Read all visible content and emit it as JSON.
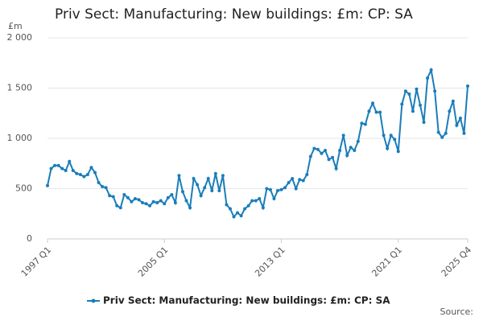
{
  "chart_data": {
    "type": "line",
    "title": "Priv Sect: Manufacturing: New buildings: £m: CP: SA",
    "y_unit": "£m",
    "source": "Source:",
    "categories": [
      "1997 Q1",
      null,
      null,
      null,
      null,
      null,
      null,
      null,
      null,
      null,
      null,
      null,
      null,
      null,
      null,
      null,
      null,
      null,
      null,
      null,
      null,
      null,
      null,
      null,
      null,
      null,
      null,
      null,
      null,
      null,
      null,
      null,
      "2005 Q1",
      null,
      null,
      null,
      null,
      null,
      null,
      null,
      null,
      null,
      null,
      null,
      null,
      null,
      null,
      null,
      null,
      null,
      null,
      null,
      null,
      null,
      null,
      null,
      null,
      null,
      null,
      null,
      null,
      null,
      null,
      null,
      "2013 Q1",
      null,
      null,
      null,
      null,
      null,
      null,
      null,
      null,
      null,
      null,
      null,
      null,
      null,
      null,
      null,
      null,
      null,
      null,
      null,
      null,
      null,
      null,
      null,
      null,
      null,
      null,
      null,
      null,
      null,
      null,
      null,
      "2021 Q1",
      null,
      null,
      null,
      null,
      null,
      null,
      null,
      null,
      null,
      null,
      null,
      null,
      null,
      null,
      null,
      null,
      null,
      null,
      "2025 Q4"
    ],
    "series": [
      {
        "name": "Priv Sect: Manufacturing: New buildings: £m: CP: SA",
        "color": "#1a7dba",
        "values": [
          530,
          700,
          730,
          730,
          700,
          680,
          770,
          680,
          650,
          640,
          620,
          640,
          710,
          660,
          560,
          520,
          510,
          430,
          420,
          330,
          310,
          440,
          410,
          370,
          400,
          390,
          360,
          350,
          330,
          370,
          360,
          380,
          350,
          410,
          440,
          360,
          630,
          470,
          380,
          310,
          600,
          540,
          430,
          510,
          600,
          480,
          650,
          480,
          630,
          340,
          300,
          220,
          260,
          230,
          300,
          330,
          380,
          380,
          400,
          310,
          500,
          490,
          400,
          480,
          490,
          510,
          560,
          600,
          500,
          590,
          580,
          640,
          820,
          900,
          890,
          850,
          880,
          790,
          810,
          700,
          880,
          1030,
          830,
          910,
          880,
          970,
          1150,
          1140,
          1270,
          1350,
          1260,
          1260,
          1030,
          900,
          1030,
          990,
          870,
          1340,
          1470,
          1440,
          1270,
          1490,
          1330,
          1160,
          1600,
          1680,
          1470,
          1060,
          1010,
          1050,
          1270,
          1370,
          1130,
          1200,
          1050,
          1520
        ]
      }
    ],
    "ylim": [
      0,
      2000
    ],
    "yticks": [
      0,
      500,
      {
        "value": 1000,
        "label": "1 000"
      },
      {
        "value": 1500,
        "label": "1 500"
      },
      {
        "value": 2000,
        "label": "2 000"
      }
    ],
    "grid": true,
    "legend": "bottom"
  }
}
